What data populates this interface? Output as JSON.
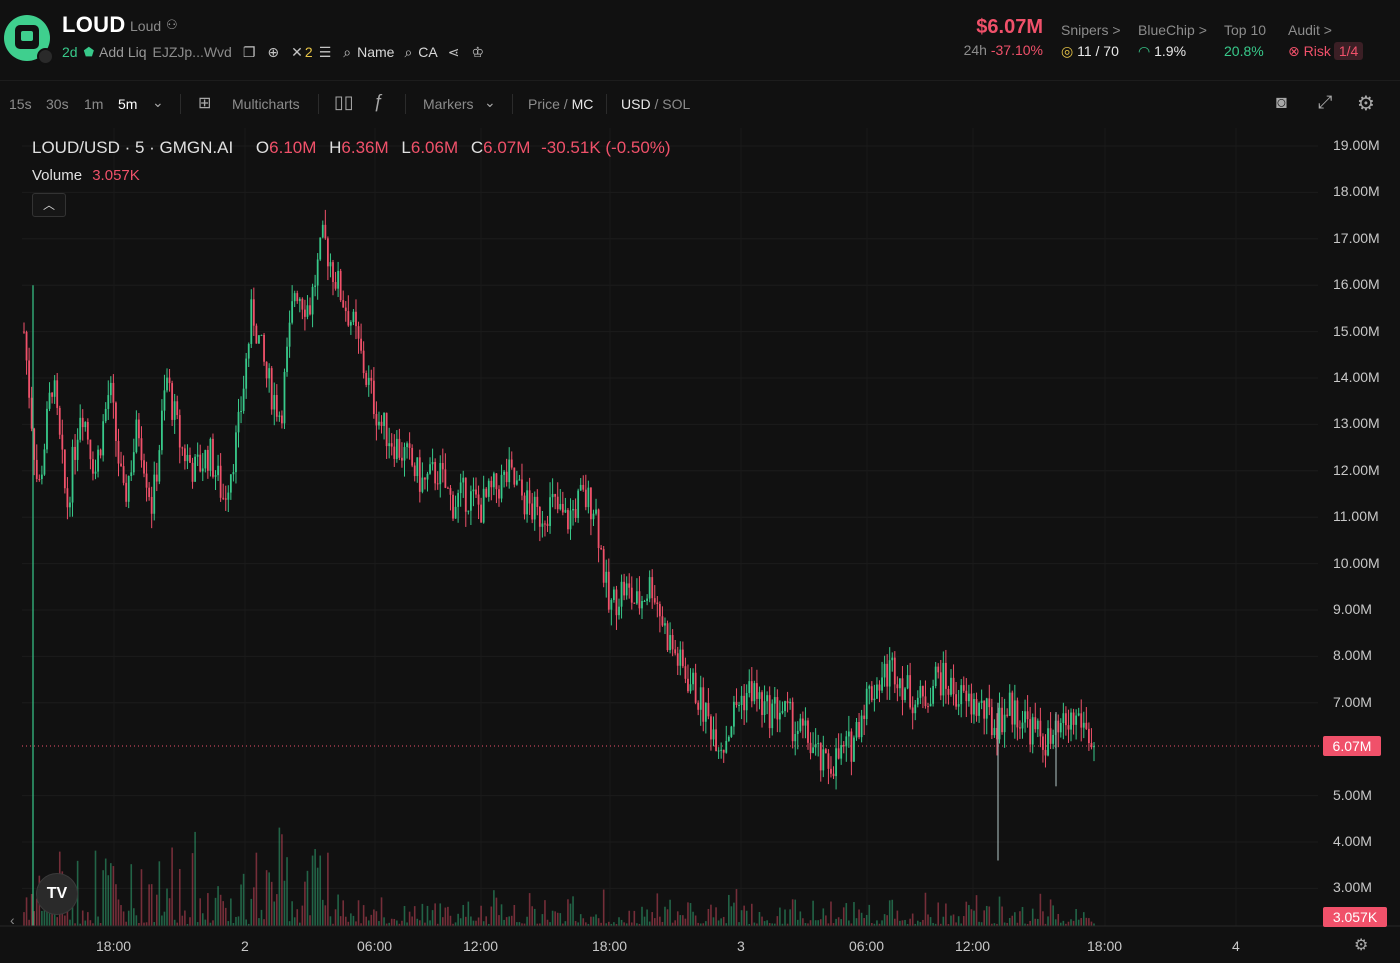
{
  "header": {
    "token_symbol": "LOUD",
    "token_name": "Loud",
    "age": "2d",
    "add_liq": "Add Liq",
    "address": "EJZJp...Wvd",
    "x_count": "2",
    "search_name": "Name",
    "search_ca": "CA",
    "market_cap": "$6.07M",
    "change_label": "24h",
    "change_24h": "-37.10%",
    "snipers_label": "Snipers >",
    "snipers_value": "11 / 70",
    "bluechip_label": "BlueChip >",
    "bluechip_value": "1.9%",
    "top10_label": "Top 10",
    "top10_value": "20.8%",
    "audit_label": "Audit >",
    "risk_label": "Risk",
    "risk_value": "1/4"
  },
  "toolbar": {
    "intervals": [
      "15s",
      "30s",
      "1m",
      "5m"
    ],
    "active_interval": "5m",
    "multicharts": "Multicharts",
    "markers": "Markers",
    "price_label": "Price",
    "mc_label": "MC",
    "usd_label": "USD",
    "sol_label": "SOL"
  },
  "legend": {
    "pair": "LOUD/USD · 5 · GMGN.AI",
    "o_label": "O",
    "o_value": "6.10M",
    "h_label": "H",
    "h_value": "6.36M",
    "l_label": "L",
    "l_value": "6.06M",
    "c_label": "C",
    "c_value": "6.07M",
    "change": "-30.51K (-0.50%)",
    "volume_label": "Volume",
    "volume_value": "3.057K"
  },
  "chart_data": {
    "type": "candlestick",
    "title": "LOUD/USD · 5 · GMGN.AI",
    "y_ticks": [
      "19.00M",
      "18.00M",
      "17.00M",
      "16.00M",
      "15.00M",
      "14.00M",
      "13.00M",
      "12.00M",
      "11.00M",
      "10.00M",
      "9.00M",
      "8.00M",
      "7.00M",
      "5.00M",
      "4.00M",
      "3.00M"
    ],
    "ylim": [
      2.5,
      19.5
    ],
    "x_ticks": [
      "18:00",
      "2",
      "06:00",
      "12:00",
      "18:00",
      "3",
      "06:00",
      "12:00",
      "18:00",
      "4"
    ],
    "current_price_label": "6.07M",
    "current_volume_label": "3.057K",
    "colors": {
      "up": "#38c98a",
      "down": "#f0516a",
      "background": "#111111"
    },
    "close_path": [
      [
        0,
        15.0
      ],
      [
        2,
        11.5
      ],
      [
        4,
        14.0
      ],
      [
        6,
        11.2
      ],
      [
        8,
        13.5
      ],
      [
        10,
        12.0
      ],
      [
        12,
        13.8
      ],
      [
        14,
        11.3
      ],
      [
        16,
        13.0
      ],
      [
        18,
        11.2
      ],
      [
        20,
        14.0
      ],
      [
        22,
        12.5
      ],
      [
        24,
        12.0
      ],
      [
        26,
        12.4
      ],
      [
        28,
        11.4
      ],
      [
        30,
        12.8
      ],
      [
        32,
        15.5
      ],
      [
        34,
        14.0
      ],
      [
        36,
        13.2
      ],
      [
        38,
        16.0
      ],
      [
        40,
        15.5
      ],
      [
        42,
        17.0
      ],
      [
        44,
        16.0
      ],
      [
        46,
        15.2
      ],
      [
        48,
        14.0
      ],
      [
        50,
        13.0
      ],
      [
        52,
        12.6
      ],
      [
        54,
        12.2
      ],
      [
        56,
        11.7
      ],
      [
        58,
        12.0
      ],
      [
        60,
        11.3
      ],
      [
        62,
        11.5
      ],
      [
        64,
        11.2
      ],
      [
        66,
        11.6
      ],
      [
        68,
        11.9
      ],
      [
        70,
        11.4
      ],
      [
        72,
        11.0
      ],
      [
        74,
        11.3
      ],
      [
        76,
        10.9
      ],
      [
        78,
        11.4
      ],
      [
        80,
        11.3
      ],
      [
        82,
        9.0
      ],
      [
        84,
        9.5
      ],
      [
        86,
        9.1
      ],
      [
        88,
        9.6
      ],
      [
        90,
        8.5
      ],
      [
        92,
        7.8
      ],
      [
        94,
        7.3
      ],
      [
        96,
        6.6
      ],
      [
        98,
        6.1
      ],
      [
        100,
        7.0
      ],
      [
        102,
        7.3
      ],
      [
        104,
        6.8
      ],
      [
        106,
        6.9
      ],
      [
        108,
        6.5
      ],
      [
        110,
        6.2
      ],
      [
        112,
        5.6
      ],
      [
        114,
        5.8
      ],
      [
        116,
        6.1
      ],
      [
        118,
        7.1
      ],
      [
        120,
        7.5
      ],
      [
        122,
        7.8
      ],
      [
        124,
        7.2
      ],
      [
        126,
        7.0
      ],
      [
        128,
        7.6
      ],
      [
        130,
        7.3
      ],
      [
        132,
        7.0
      ],
      [
        134,
        6.9
      ],
      [
        136,
        6.5
      ],
      [
        138,
        6.9
      ],
      [
        140,
        6.7
      ],
      [
        142,
        6.3
      ],
      [
        144,
        6.1
      ],
      [
        146,
        6.5
      ],
      [
        148,
        6.7
      ],
      [
        150,
        6.07
      ]
    ]
  }
}
